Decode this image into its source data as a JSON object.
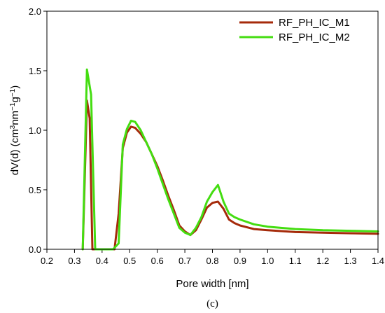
{
  "chart_data": {
    "type": "line",
    "xlabel": "Pore width [nm]",
    "ylabel_parts": [
      "dV(d) (cm",
      "3",
      "nm",
      "−1",
      "g",
      "−1",
      ")"
    ],
    "caption": "(c)",
    "xlim": [
      0.2,
      1.4
    ],
    "ylim": [
      0.0,
      2.0
    ],
    "xticks": [
      0.2,
      0.3,
      0.4,
      0.5,
      0.6,
      0.7,
      0.8,
      0.9,
      1.0,
      1.1,
      1.2,
      1.3,
      1.4
    ],
    "xtick_labels": [
      "0.2",
      "0.3",
      "0.4",
      "0.5",
      "0.6",
      "0.7",
      "0.8",
      "0.9",
      "1.0",
      "1.1",
      "1.2",
      "1.3",
      "1.4"
    ],
    "yticks": [
      0.0,
      0.5,
      1.0,
      1.5,
      2.0
    ],
    "ytick_labels": [
      "0.0",
      "0.5",
      "1.0",
      "1.5",
      "2.0"
    ],
    "legend_position": "top-right",
    "series": [
      {
        "name": "RF_PH_IC_M1",
        "color": "#a52a0a",
        "x": [
          0.33,
          0.345,
          0.355,
          0.365,
          0.38,
          0.43,
          0.445,
          0.46,
          0.475,
          0.49,
          0.505,
          0.52,
          0.54,
          0.56,
          0.58,
          0.6,
          0.62,
          0.64,
          0.66,
          0.68,
          0.7,
          0.72,
          0.74,
          0.76,
          0.78,
          0.8,
          0.82,
          0.84,
          0.86,
          0.88,
          0.9,
          0.95,
          1.0,
          1.1,
          1.2,
          1.3,
          1.4
        ],
        "y": [
          0.0,
          1.25,
          1.1,
          0.0,
          0.0,
          0.0,
          0.0,
          0.3,
          0.85,
          0.98,
          1.03,
          1.02,
          0.97,
          0.9,
          0.8,
          0.7,
          0.58,
          0.45,
          0.33,
          0.2,
          0.15,
          0.12,
          0.16,
          0.25,
          0.35,
          0.39,
          0.4,
          0.34,
          0.25,
          0.22,
          0.2,
          0.17,
          0.16,
          0.145,
          0.14,
          0.135,
          0.13
        ]
      },
      {
        "name": "RF_PH_IC_M2",
        "color": "#44dd11",
        "x": [
          0.33,
          0.345,
          0.36,
          0.375,
          0.385,
          0.44,
          0.46,
          0.475,
          0.49,
          0.505,
          0.52,
          0.54,
          0.56,
          0.58,
          0.6,
          0.62,
          0.64,
          0.66,
          0.68,
          0.7,
          0.72,
          0.74,
          0.76,
          0.78,
          0.8,
          0.82,
          0.84,
          0.86,
          0.88,
          0.9,
          0.95,
          1.0,
          1.1,
          1.2,
          1.3,
          1.4
        ],
        "y": [
          0.0,
          1.51,
          1.3,
          0.0,
          0.0,
          0.0,
          0.05,
          0.88,
          1.01,
          1.08,
          1.07,
          1.0,
          0.9,
          0.8,
          0.68,
          0.55,
          0.42,
          0.3,
          0.18,
          0.14,
          0.12,
          0.18,
          0.27,
          0.4,
          0.48,
          0.54,
          0.4,
          0.3,
          0.27,
          0.25,
          0.21,
          0.19,
          0.17,
          0.16,
          0.155,
          0.15
        ]
      }
    ]
  }
}
